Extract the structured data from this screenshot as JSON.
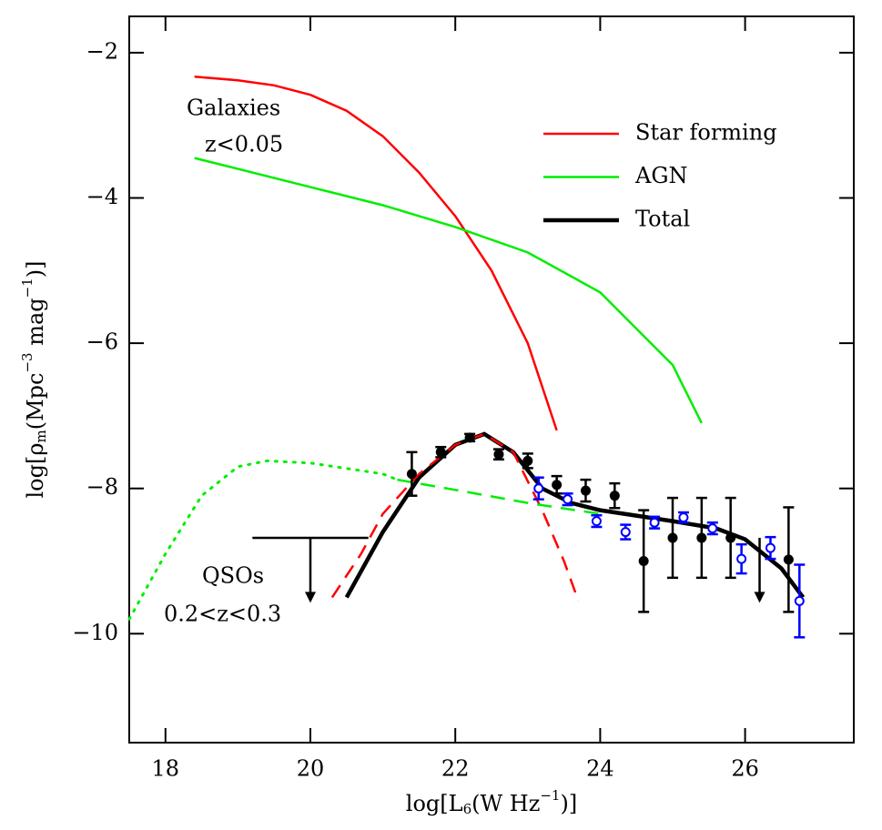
{
  "chart_data": {
    "type": "line",
    "xlabel": [
      "log[L",
      "6",
      "(W Hz",
      "−1",
      ")]"
    ],
    "ylabel": [
      "log[ρ",
      "m",
      "(Mpc",
      "−3",
      " mag",
      "−1",
      ")]"
    ],
    "xlim": [
      17.5,
      27.5
    ],
    "ylim": [
      -11.5,
      -1.5
    ],
    "xticks": [
      18,
      20,
      22,
      24,
      26
    ],
    "yticks": [
      {
        "value": -2,
        "label": "−2"
      },
      {
        "value": -4,
        "label": "−4"
      },
      {
        "value": -6,
        "label": "−6"
      },
      {
        "value": -8,
        "label": "−8"
      },
      {
        "value": -10,
        "label": "−10"
      }
    ],
    "legend": "upper right",
    "annotations": [
      "Galaxies",
      "z<0.05",
      "QSOs",
      "0.2<z<0.3"
    ],
    "series": [
      {
        "name": "Star forming",
        "color": "#ff0000",
        "style": "solid",
        "x": [
          18.4,
          19,
          19.5,
          20,
          20.5,
          21,
          21.5,
          22,
          22.5,
          23,
          23.4
        ],
        "values": [
          -2.33,
          -2.38,
          -2.45,
          -2.58,
          -2.8,
          -3.15,
          -3.65,
          -4.25,
          -5.0,
          -6.0,
          -7.2
        ]
      },
      {
        "name": "AGN",
        "color": "#00ee00",
        "style": "solid",
        "x": [
          18.4,
          19,
          20,
          21,
          22,
          23,
          24,
          25,
          25.4
        ],
        "values": [
          -3.45,
          -3.6,
          -3.85,
          -4.1,
          -4.4,
          -4.75,
          -5.3,
          -6.3,
          -7.1
        ]
      },
      {
        "name": "Total",
        "color": "#000000",
        "style": "thick",
        "x": [
          20.5,
          21,
          21.5,
          22,
          22.4,
          22.8,
          23.2,
          23.6,
          24,
          25,
          25.6,
          26,
          26.5,
          26.8
        ],
        "values": [
          -9.5,
          -8.6,
          -7.85,
          -7.4,
          -7.25,
          -7.5,
          -8.0,
          -8.2,
          -8.3,
          -8.45,
          -8.55,
          -8.7,
          -9.1,
          -9.5
        ]
      },
      {
        "color": "#ff0000",
        "style": "dashed",
        "x": [
          20.3,
          20.7,
          21,
          21.5,
          22,
          22.4,
          22.8,
          23.2,
          23.5,
          23.7
        ],
        "values": [
          -9.5,
          -8.9,
          -8.35,
          -7.8,
          -7.4,
          -7.25,
          -7.5,
          -8.3,
          -9.0,
          -9.55
        ]
      },
      {
        "color": "#00ee00",
        "style": "dashed",
        "x": [
          21.2,
          22,
          23,
          24
        ],
        "values": [
          -7.88,
          -8.02,
          -8.2,
          -8.35
        ]
      },
      {
        "color": "#00ee00",
        "style": "dotted",
        "x": [
          17.5,
          18,
          18.5,
          19,
          19.4,
          20,
          21,
          21.2
        ],
        "values": [
          -9.8,
          -8.9,
          -8.1,
          -7.7,
          -7.62,
          -7.65,
          -7.8,
          -7.88
        ]
      },
      {
        "color": "#000000",
        "style": "points",
        "x": [
          21.4,
          21.8,
          22.2,
          22.6,
          23.0,
          23.4,
          23.8,
          24.2,
          24.6,
          25.0,
          25.4,
          25.8,
          26.6
        ],
        "values": [
          -7.8,
          -7.5,
          -7.3,
          -7.53,
          -7.62,
          -7.95,
          -8.03,
          -8.1,
          -9.0,
          -8.68,
          -8.68,
          -8.68,
          -8.98
        ],
        "errors": [
          0.3,
          0.07,
          0.05,
          0.07,
          0.1,
          0.12,
          0.15,
          0.17,
          0.7,
          0.55,
          0.55,
          0.55,
          0.72
        ]
      },
      {
        "color": "#0000ff",
        "style": "open-points",
        "x": [
          23.15,
          23.55,
          23.95,
          24.35,
          24.75,
          25.15,
          25.55,
          25.95,
          26.35,
          26.75
        ],
        "values": [
          -8.0,
          -8.15,
          -8.45,
          -8.6,
          -8.47,
          -8.4,
          -8.55,
          -8.97,
          -8.82,
          -9.55
        ],
        "errors": [
          0.15,
          0.08,
          0.08,
          0.1,
          0.08,
          0.07,
          0.08,
          0.2,
          0.15,
          0.5
        ]
      }
    ],
    "upper_limits": [
      {
        "x": [
          19.2,
          20.8
        ],
        "arrow_x": 20,
        "y": -8.68,
        "arrow_to": -9.55
      },
      {
        "x": [
          26.2,
          26.2
        ],
        "arrow_x": 26.2,
        "y": -8.68,
        "arrow_to": -9.55
      }
    ]
  }
}
